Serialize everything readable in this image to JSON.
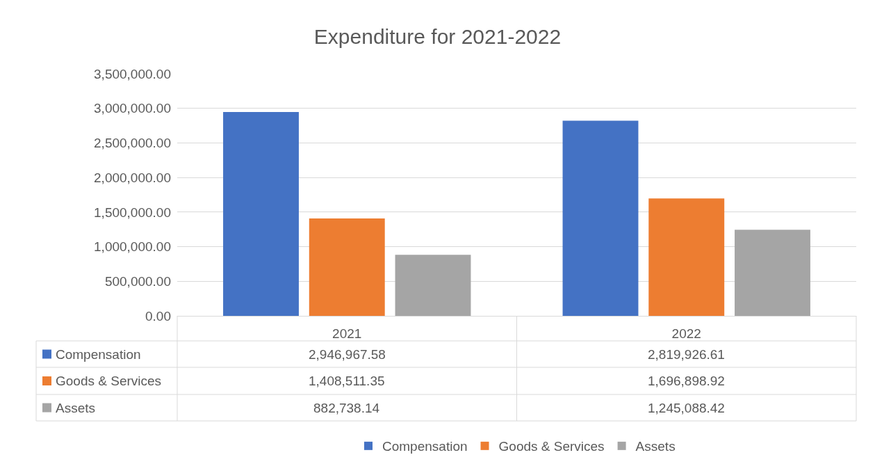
{
  "chart_data": {
    "type": "bar",
    "title": "Expenditure for 2021-2022",
    "categories": [
      "2021",
      "2022"
    ],
    "series": [
      {
        "name": "Compensation",
        "color": "#4472c4",
        "values": [
          2946967.58,
          2819926.61
        ],
        "value_labels": [
          "2,946,967.58",
          "2,819,926.61"
        ]
      },
      {
        "name": "Goods & Services",
        "color": "#ed7d31",
        "values": [
          1408511.35,
          1696898.92
        ],
        "value_labels": [
          "1,408,511.35",
          "1,696,898.92"
        ]
      },
      {
        "name": "Assets",
        "color": "#a5a5a5",
        "values": [
          882738.14,
          1245088.42
        ],
        "value_labels": [
          "882,738.14",
          "1,245,088.42"
        ]
      }
    ],
    "ylim": [
      0,
      3500000
    ],
    "yticks": [
      {
        "value": 0,
        "label": "0.00"
      },
      {
        "value": 500000,
        "label": "500,000.00"
      },
      {
        "value": 1000000,
        "label": "1,000,000.00"
      },
      {
        "value": 1500000,
        "label": "1,500,000.00"
      },
      {
        "value": 2000000,
        "label": "2,000,000.00"
      },
      {
        "value": 2500000,
        "label": "2,500,000.00"
      },
      {
        "value": 3000000,
        "label": "3,000,000.00"
      },
      {
        "value": 3500000,
        "label": "3,500,000.00"
      }
    ],
    "grid": "y",
    "legend": "bottom"
  }
}
